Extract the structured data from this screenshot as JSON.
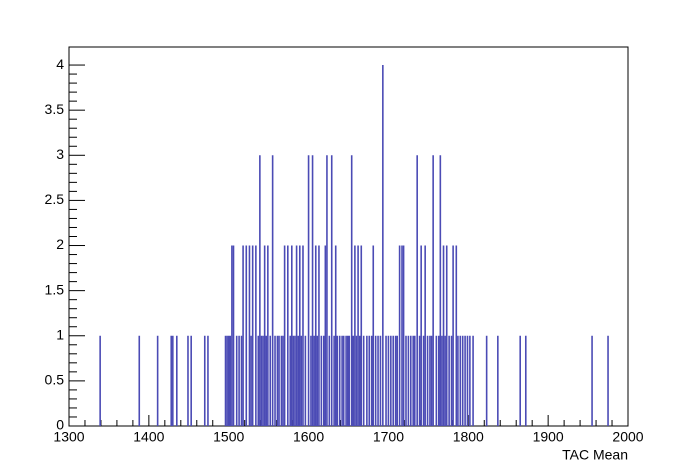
{
  "chart_data": {
    "type": "histogram",
    "x_label": "TAC Mean",
    "color": "#4b4bb5",
    "xlim": [
      1300,
      2000
    ],
    "xticks": [
      1300,
      1400,
      1500,
      1600,
      1700,
      1800,
      1900,
      2000
    ],
    "ylim": [
      0,
      4.2
    ],
    "yticks": [
      0,
      0.5,
      1,
      1.5,
      2,
      2.5,
      3,
      3.5,
      4
    ],
    "x": [
      1339,
      1388,
      1411,
      1428,
      1430,
      1435,
      1449,
      1453,
      1470,
      1474,
      1496,
      1498,
      1500,
      1502,
      1504,
      1506,
      1510,
      1513,
      1516,
      1518,
      1522,
      1526,
      1528,
      1530,
      1534,
      1537,
      1539,
      1541,
      1543,
      1545,
      1547,
      1549,
      1552,
      1555,
      1558,
      1561,
      1563,
      1566,
      1568,
      1570,
      1574,
      1577,
      1579,
      1581,
      1583,
      1585,
      1587,
      1589,
      1591,
      1593,
      1596,
      1600,
      1603,
      1605,
      1607,
      1609,
      1611,
      1613,
      1616,
      1619,
      1621,
      1623,
      1626,
      1629,
      1632,
      1634,
      1636,
      1639,
      1642,
      1644,
      1647,
      1649,
      1651,
      1654,
      1656,
      1658,
      1660,
      1662,
      1664,
      1666,
      1669,
      1673,
      1676,
      1679,
      1681,
      1684,
      1687,
      1690,
      1693,
      1697,
      1700,
      1703,
      1706,
      1709,
      1711,
      1714,
      1717,
      1719,
      1722,
      1725,
      1728,
      1731,
      1733,
      1736,
      1739,
      1741,
      1744,
      1746,
      1749,
      1752,
      1754,
      1756,
      1760,
      1763,
      1765,
      1767,
      1769,
      1771,
      1773,
      1776,
      1779,
      1781,
      1785,
      1787,
      1790,
      1793,
      1796,
      1799,
      1802,
      1806,
      1823,
      1837,
      1865,
      1872,
      1955,
      1975
    ],
    "values": [
      1,
      1,
      1,
      1,
      1,
      1,
      1,
      1,
      1,
      1,
      1,
      1,
      1,
      1,
      2,
      2,
      1,
      1,
      1,
      2,
      2,
      2,
      1,
      2,
      2,
      1,
      3,
      1,
      1,
      2,
      1,
      2,
      1,
      3,
      1,
      1,
      1,
      1,
      1,
      2,
      2,
      1,
      2,
      1,
      1,
      2,
      1,
      2,
      1,
      2,
      1,
      3,
      1,
      3,
      1,
      2,
      1,
      2,
      1,
      1,
      2,
      3,
      1,
      3,
      1,
      2,
      1,
      1,
      1,
      1,
      1,
      1,
      1,
      3,
      1,
      2,
      1,
      2,
      1,
      2,
      1,
      1,
      1,
      1,
      2,
      1,
      1,
      1,
      4,
      1,
      1,
      1,
      1,
      1,
      1,
      2,
      2,
      2,
      1,
      1,
      1,
      1,
      1,
      3,
      1,
      2,
      1,
      2,
      1,
      1,
      1,
      3,
      1,
      1,
      3,
      1,
      2,
      1,
      2,
      1,
      1,
      2,
      2,
      1,
      1,
      1,
      1,
      1,
      1,
      1,
      1,
      1,
      1,
      1,
      1,
      1
    ]
  }
}
